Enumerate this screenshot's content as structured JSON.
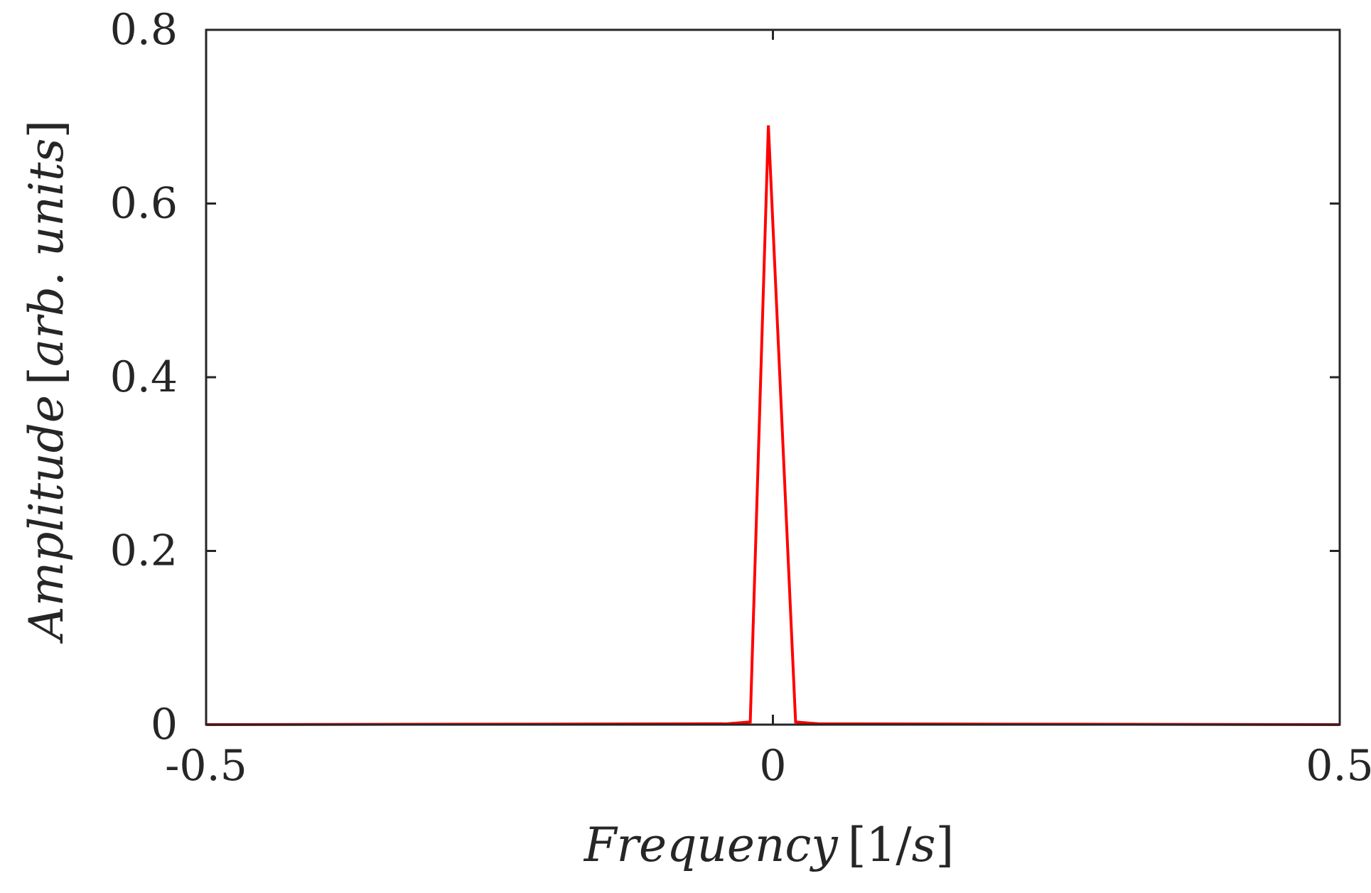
{
  "chart_data": {
    "type": "line",
    "title": "",
    "xlabel": {
      "italic": "Frequency",
      "unit_open": "[",
      "unit_num": "1/",
      "unit_italic": "s",
      "unit_close": "]"
    },
    "ylabel": {
      "italic": "Amplitude",
      "unit_open": "[",
      "unit_italic": "arb. units",
      "unit_close": "]"
    },
    "xlim": [
      -0.5,
      0.5
    ],
    "ylim": [
      0,
      0.8
    ],
    "xticks": [
      -0.5,
      0,
      0.5
    ],
    "xtick_labels": [
      "-0.5",
      "0",
      "0.5"
    ],
    "yticks": [
      0,
      0.2,
      0.4,
      0.6,
      0.8
    ],
    "ytick_labels": [
      "0",
      "0.2",
      "0.4",
      "0.6",
      "0.8"
    ],
    "grid": false,
    "box": true,
    "series": [
      {
        "color": "#ff0000",
        "x": [
          -0.5,
          -0.04,
          -0.02,
          -0.004,
          0.02,
          0.04,
          0.5
        ],
        "y": [
          0,
          0.001,
          0.003,
          0.69,
          0.003,
          0.001,
          0
        ]
      }
    ]
  }
}
